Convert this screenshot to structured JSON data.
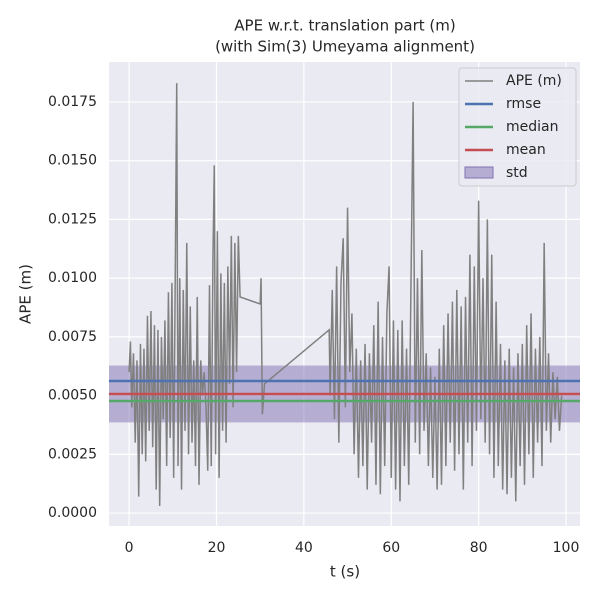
{
  "chart_data": {
    "type": "line",
    "title": [
      "APE w.r.t. translation part (m)",
      "(with Sim(3) Umeyama alignment)"
    ],
    "xlabel": "t (s)",
    "ylabel": "APE (m)",
    "xlim": [
      -4.6,
      103.2
    ],
    "ylim": [
      -0.00055,
      0.0192
    ],
    "xticks": [
      0,
      20,
      40,
      60,
      80,
      100
    ],
    "yticks": [
      {
        "value": 0,
        "label": "0.0000"
      },
      {
        "value": 0.0025,
        "label": "0.0025"
      },
      {
        "value": 0.005,
        "label": "0.0050"
      },
      {
        "value": 0.0075,
        "label": "0.0075"
      },
      {
        "value": 0.01,
        "label": "0.0100"
      },
      {
        "value": 0.0125,
        "label": "0.0125"
      },
      {
        "value": 0.015,
        "label": "0.0150"
      },
      {
        "value": 0.0175,
        "label": "0.0175"
      }
    ],
    "grid": true,
    "legend": "upper right",
    "series": [
      {
        "name": "APE (m)",
        "color": "#808080",
        "x": [
          0,
          0.3,
          0.6,
          1,
          1.4,
          1.8,
          2.2,
          2.6,
          3,
          3.4,
          3.8,
          4.2,
          4.6,
          5,
          5.4,
          5.8,
          6.2,
          6.6,
          7,
          7.4,
          7.8,
          8.2,
          8.6,
          9,
          9.4,
          9.8,
          10.2,
          10.6,
          10.9,
          11.2,
          11.6,
          12,
          12.4,
          12.8,
          13.2,
          13.6,
          14,
          14.4,
          14.8,
          15.2,
          15.6,
          16,
          16.4,
          16.8,
          17.2,
          17.6,
          18,
          18.4,
          18.8,
          19.2,
          19.5,
          19.8,
          20.2,
          20.6,
          21,
          21.4,
          21.8,
          22.2,
          22.6,
          23,
          23.4,
          23.8,
          24.2,
          24.6,
          25,
          25.4,
          30,
          30.2,
          30.5,
          31,
          45.8,
          46,
          46.5,
          47,
          47.5,
          48,
          48.5,
          49,
          49.5,
          50,
          50.5,
          51,
          51.5,
          52,
          52.5,
          53,
          53.5,
          54,
          54.5,
          55,
          55.5,
          56,
          56.5,
          57,
          57.5,
          58,
          58.5,
          59,
          59.5,
          60,
          60.5,
          61,
          61.5,
          62,
          62.5,
          63,
          63.5,
          64,
          64.5,
          65,
          65.5,
          66,
          66.5,
          67,
          67.5,
          68,
          68.5,
          69,
          69.5,
          70,
          70.5,
          71,
          71.5,
          72,
          72.5,
          73,
          73.5,
          74,
          74.5,
          75,
          75.5,
          76,
          76.5,
          77,
          77.5,
          78,
          78.5,
          79,
          79.5,
          80,
          80.5,
          81,
          81.5,
          82,
          82.5,
          83,
          83.5,
          84,
          84.5,
          85,
          85.5,
          86,
          86.5,
          87,
          87.5,
          88,
          88.5,
          89,
          89.5,
          90,
          90.5,
          91,
          91.5,
          92,
          92.5,
          93,
          93.5,
          94,
          94.5,
          95,
          95.5,
          96,
          96.5,
          97,
          97.5,
          98,
          98.5,
          99
        ],
        "values": [
          0.006,
          0.0073,
          0.0045,
          0.0068,
          0.003,
          0.0065,
          0.0007,
          0.0072,
          0.0025,
          0.007,
          0.0022,
          0.0084,
          0.0035,
          0.0086,
          0.0028,
          0.008,
          0.001,
          0.0078,
          0.0003,
          0.0075,
          0.004,
          0.0082,
          0.002,
          0.0094,
          0.0032,
          0.0098,
          0.0015,
          0.011,
          0.0183,
          0.002,
          0.01,
          0.001,
          0.0095,
          0.0035,
          0.0115,
          0.0025,
          0.0088,
          0.003,
          0.0065,
          0.002,
          0.0092,
          0.0012,
          0.0065,
          0.005,
          0.006,
          0.0045,
          0.0018,
          0.0097,
          0.002,
          0.011,
          0.0148,
          0.0025,
          0.012,
          0.0015,
          0.0102,
          0.0035,
          0.0098,
          0.003,
          0.0105,
          0.0055,
          0.0118,
          0.0045,
          0.0115,
          0.006,
          0.0118,
          0.0092,
          0.0089,
          0.01,
          0.0042,
          0.0055,
          0.0078,
          0.005,
          0.0095,
          0.004,
          0.0105,
          0.003,
          0.0098,
          0.0117,
          0.0045,
          0.013,
          0.006,
          0.0085,
          0.0025,
          0.007,
          0.0015,
          0.0065,
          0.002,
          0.0072,
          0.001,
          0.0068,
          0.003,
          0.008,
          0.0012,
          0.009,
          0.0008,
          0.0075,
          0.002,
          0.0085,
          0.0105,
          0.0015,
          0.0082,
          0.001,
          0.0078,
          0.0005,
          0.0082,
          0.002,
          0.007,
          0.0012,
          0.0095,
          0.0175,
          0.003,
          0.01,
          0.0025,
          0.0112,
          0.0035,
          0.0068,
          0.002,
          0.0062,
          0.0015,
          0.0058,
          0.001,
          0.007,
          0.0012,
          0.008,
          0.002,
          0.0085,
          0.003,
          0.009,
          0.0018,
          0.0095,
          0.0025,
          0.0088,
          0.001,
          0.0092,
          0.003,
          0.011,
          0.002,
          0.0105,
          0.0035,
          0.0133,
          0.004,
          0.01,
          0.003,
          0.0125,
          0.0025,
          0.011,
          0.0015,
          0.009,
          0.002,
          0.0072,
          0.001,
          0.0065,
          0.0008,
          0.007,
          0.0015,
          0.0062,
          0.0005,
          0.0068,
          0.002,
          0.0072,
          0.0012,
          0.008,
          0.0025,
          0.0085,
          0.0015,
          0.007,
          0.003,
          0.0075,
          0.002,
          0.0115,
          0.0035,
          0.0068,
          0.003,
          0.006,
          0.004,
          0.0058,
          0.0035,
          0.005
        ]
      }
    ],
    "stats": [
      {
        "name": "rmse",
        "color": "#4c72b0",
        "value": 0.00562
      },
      {
        "name": "median",
        "color": "#55a868",
        "value": 0.00477
      },
      {
        "name": "mean",
        "color": "#c44e52",
        "value": 0.00507
      }
    ],
    "std": {
      "name": "std",
      "color": "#8172b2",
      "value": 0.00121
    }
  }
}
